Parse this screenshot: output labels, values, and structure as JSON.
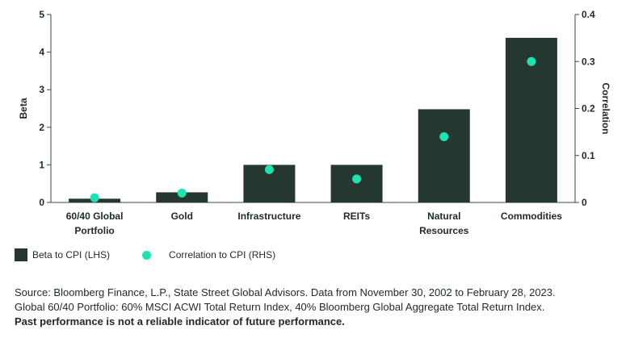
{
  "chart_data": {
    "type": "bar",
    "categories": [
      [
        "60/40 Global",
        "Portfolio"
      ],
      [
        "Gold"
      ],
      [
        "Infrastructure"
      ],
      [
        "REITs"
      ],
      [
        "Natural",
        "Resources"
      ],
      [
        "Commodities"
      ]
    ],
    "series": [
      {
        "name": "Beta to CPI (LHS)",
        "type": "bar",
        "axis": "left",
        "values": [
          0.1,
          0.27,
          1.0,
          1.0,
          2.48,
          4.38
        ]
      },
      {
        "name": "Correlation to CPI (RHS)",
        "type": "scatter",
        "axis": "right",
        "values": [
          0.01,
          0.02,
          0.07,
          0.05,
          0.14,
          0.3
        ]
      }
    ],
    "ylabel_left": "Beta",
    "ylabel_right": "Correlation",
    "ylim_left": [
      0,
      5
    ],
    "ylim_right": [
      0,
      0.4
    ],
    "yticks_left": [
      "0",
      "1",
      "2",
      "3",
      "4",
      "5"
    ],
    "yticks_right": [
      "0",
      "0.1",
      "0.2",
      "0.3",
      "0.4"
    ],
    "legend_position": "bottom-left",
    "grid": false,
    "colors": {
      "bar": "#25382f",
      "dot": "#1ee3b0"
    }
  },
  "legend": {
    "bar_label": "Beta to CPI (LHS)",
    "dot_label": "Correlation to CPI (RHS)"
  },
  "footnote": {
    "line1": "Source: Bloomberg Finance, L.P., State Street Global Advisors. Data from November 30, 2002 to February 28, 2023.",
    "line2": "Global 60/40 Portfolio: 60% MSCI ACWI Total Return Index, 40% Bloomberg Global Aggregate Total Return Index.",
    "line3": "Past performance is not a reliable indicator of future performance."
  }
}
